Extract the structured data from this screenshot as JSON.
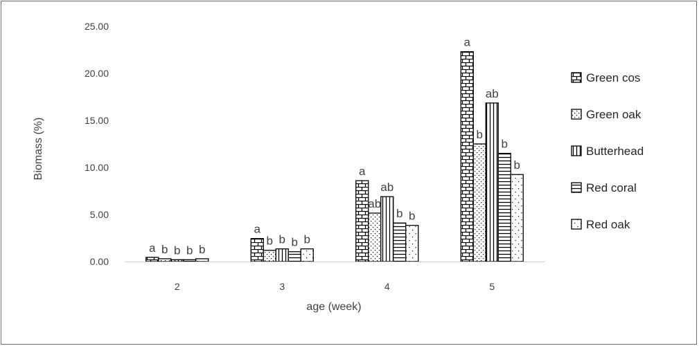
{
  "chart_data": {
    "type": "bar",
    "title": "",
    "xlabel": "age (week)",
    "ylabel": "Biomass (%)",
    "ylim": [
      0,
      25
    ],
    "ytick_labels": [
      "0.00",
      "5.00",
      "10.00",
      "15.00",
      "20.00",
      "25.00"
    ],
    "grid": false,
    "legend_position": "right",
    "categories": [
      "2",
      "3",
      "4",
      "5"
    ],
    "series": [
      {
        "name": "Green cos",
        "pattern": "brick",
        "values": [
          0.45,
          2.45,
          8.6,
          22.3
        ],
        "letters": [
          "a",
          "a",
          "a",
          "a"
        ]
      },
      {
        "name": "Green oak",
        "pattern": "dots",
        "values": [
          0.3,
          1.2,
          5.15,
          12.5
        ],
        "letters": [
          "b",
          "b",
          "ab",
          "b"
        ]
      },
      {
        "name": "Butterhead",
        "pattern": "vertical-lines",
        "values": [
          0.2,
          1.35,
          6.9,
          16.85
        ],
        "letters": [
          "b",
          "b",
          "ab",
          "ab"
        ]
      },
      {
        "name": "Red coral",
        "pattern": "horizontal-lines",
        "values": [
          0.2,
          1.05,
          4.1,
          11.5
        ],
        "letters": [
          "b",
          "b",
          "b",
          "b"
        ]
      },
      {
        "name": "Red oak",
        "pattern": "sparse-dots",
        "values": [
          0.3,
          1.35,
          3.85,
          9.25
        ],
        "letters": [
          "b",
          "b",
          "b",
          "b"
        ]
      }
    ]
  }
}
